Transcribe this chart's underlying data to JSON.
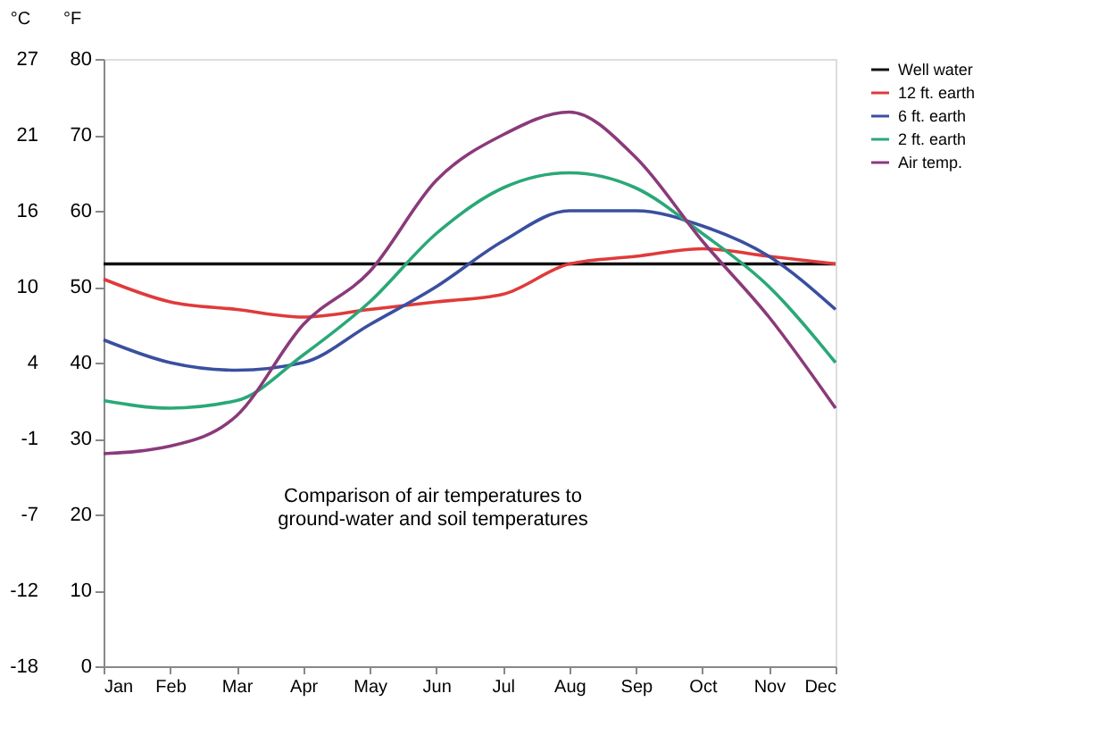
{
  "chart_data": {
    "type": "line",
    "ylabel": "°F",
    "y2label": "°C",
    "categories": [
      "Jan",
      "Feb",
      "Mar",
      "Apr",
      "May",
      "Jun",
      "Jul",
      "Aug",
      "Sep",
      "Oct",
      "Nov",
      "Dec"
    ],
    "series": [
      {
        "name": "Well water",
        "color": "#111111",
        "values": [
          53,
          53,
          53,
          53,
          53,
          53,
          53,
          53,
          53,
          53,
          53,
          53
        ]
      },
      {
        "name": "12 ft. earth",
        "color": "#e03a3a",
        "values": [
          51,
          48,
          47,
          46,
          47,
          48,
          49,
          53,
          54,
          55,
          54,
          53
        ]
      },
      {
        "name": "6 ft. earth",
        "color": "#3a4fa0",
        "values": [
          43,
          40,
          39,
          40,
          45,
          50,
          56,
          60,
          60,
          58,
          54,
          47
        ]
      },
      {
        "name": "2 ft. earth",
        "color": "#2aa878",
        "values": [
          35,
          34,
          35,
          41,
          48,
          57,
          63,
          65,
          63,
          57,
          50,
          40
        ]
      },
      {
        "name": "Air temp.",
        "color": "#8a3a7a",
        "values": [
          28,
          29,
          33,
          45,
          52,
          64,
          70,
          73,
          67,
          56,
          46,
          34
        ]
      }
    ],
    "ylim": [
      0,
      80
    ],
    "yticks": [
      0,
      10,
      20,
      30,
      40,
      50,
      60,
      70,
      80
    ],
    "y2lim": [
      -17.78,
      26.67
    ],
    "y2ticks": [
      {
        "value": -17.78,
        "label": "-18"
      },
      {
        "value": -12.22,
        "label": "-12"
      },
      {
        "value": -6.67,
        "label": "-7"
      },
      {
        "value": -1.11,
        "label": "-1"
      },
      {
        "value": 4.44,
        "label": "4"
      },
      {
        "value": 10,
        "label": "10"
      },
      {
        "value": 15.56,
        "label": "16"
      },
      {
        "value": 21.11,
        "label": "21"
      },
      {
        "value": 26.67,
        "label": "27"
      }
    ],
    "annotations": [
      "Comparison of air temperatures to\nground-water and soil temperatures"
    ],
    "grid": false,
    "legend": "right",
    "marker": "none",
    "line_style": "solid"
  }
}
